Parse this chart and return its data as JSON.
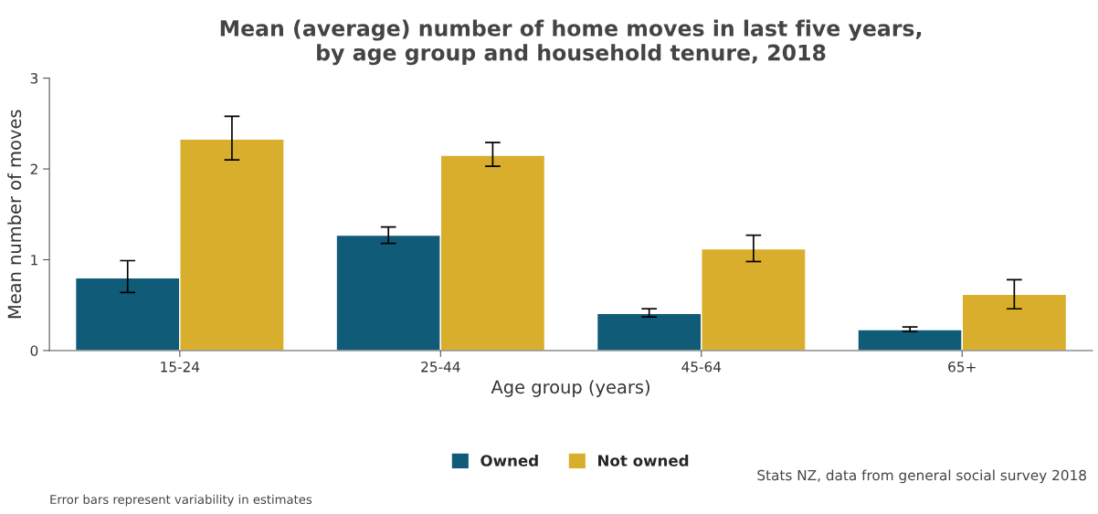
{
  "chart_data": {
    "type": "bar",
    "title": "Mean (average) number of home moves in last five years,\nby age group and household tenure, 2018",
    "xlabel": "Age group (years)",
    "ylabel": "Mean number of moves",
    "categories": [
      "15-24",
      "25-44",
      "45-64",
      "65+"
    ],
    "series": [
      {
        "name": "Owned",
        "color": "#0f5b78",
        "values": [
          0.8,
          1.27,
          0.41,
          0.23
        ],
        "errors": [
          [
            0.64,
            0.99
          ],
          [
            1.18,
            1.36
          ],
          [
            0.37,
            0.46
          ],
          [
            0.21,
            0.26
          ]
        ]
      },
      {
        "name": "Not owned",
        "color": "#d9ae2c",
        "values": [
          2.33,
          2.15,
          1.12,
          0.62
        ],
        "errors": [
          [
            2.1,
            2.58
          ],
          [
            2.03,
            2.29
          ],
          [
            0.98,
            1.27
          ],
          [
            0.46,
            0.78
          ]
        ]
      }
    ],
    "ylim": [
      0,
      3
    ],
    "yticks": [
      0,
      1,
      2,
      3
    ],
    "grid": false,
    "legend": "bottom",
    "annotations": [
      "Stats NZ, data from general social survey 2018",
      "Error bars represent variability in estimates"
    ]
  }
}
